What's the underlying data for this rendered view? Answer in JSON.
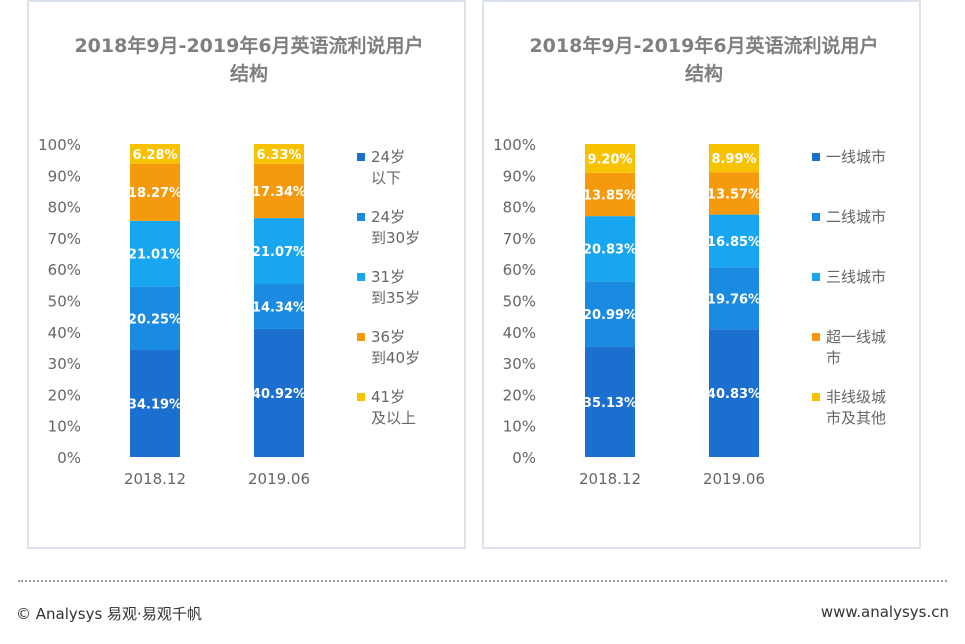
{
  "chart_data": [
    {
      "type": "bar",
      "stacked": true,
      "title": "2018年9月-2019年6月英语流利说用户结构",
      "categories": [
        "2018.12",
        "2019.06"
      ],
      "ylim": [
        0,
        100
      ],
      "yticks": [
        "0%",
        "10%",
        "20%",
        "30%",
        "40%",
        "50%",
        "60%",
        "70%",
        "80%",
        "90%",
        "100%"
      ],
      "legend_position": "right",
      "series": [
        {
          "name": "24岁以下",
          "color": "#1b6fcf",
          "values": [
            34.19,
            40.92
          ]
        },
        {
          "name": "24岁到30岁",
          "color": "#1a8be0",
          "values": [
            20.25,
            14.34
          ]
        },
        {
          "name": "31岁到35岁",
          "color": "#18a6f0",
          "values": [
            21.01,
            21.07
          ]
        },
        {
          "name": "36岁到40岁",
          "color": "#f59a0c",
          "values": [
            18.27,
            17.34
          ]
        },
        {
          "name": "41岁及以上",
          "color": "#f7c200",
          "values": [
            6.28,
            6.33
          ]
        }
      ]
    },
    {
      "type": "bar",
      "stacked": true,
      "title": "2018年9月-2019年6月英语流利说用户结构",
      "categories": [
        "2018.12",
        "2019.06"
      ],
      "ylim": [
        0,
        100
      ],
      "yticks": [
        "0%",
        "10%",
        "20%",
        "30%",
        "40%",
        "50%",
        "60%",
        "70%",
        "80%",
        "90%",
        "100%"
      ],
      "legend_position": "right",
      "series": [
        {
          "name": "一线城市",
          "color": "#1b6fcf",
          "values": [
            35.13,
            40.83
          ]
        },
        {
          "name": "二线城市",
          "color": "#1a8be0",
          "values": [
            20.99,
            19.76
          ]
        },
        {
          "name": "三线城市",
          "color": "#18a6f0",
          "values": [
            20.83,
            16.85
          ]
        },
        {
          "name": "超一线城市",
          "color": "#f59a0c",
          "values": [
            13.85,
            13.57
          ]
        },
        {
          "name": "非线级城市及其他",
          "color": "#f7c200",
          "values": [
            9.2,
            8.99
          ]
        }
      ]
    }
  ],
  "footer": {
    "left": "© Analysys 易观·易观千帆",
    "right": "www.analysys.cn"
  }
}
